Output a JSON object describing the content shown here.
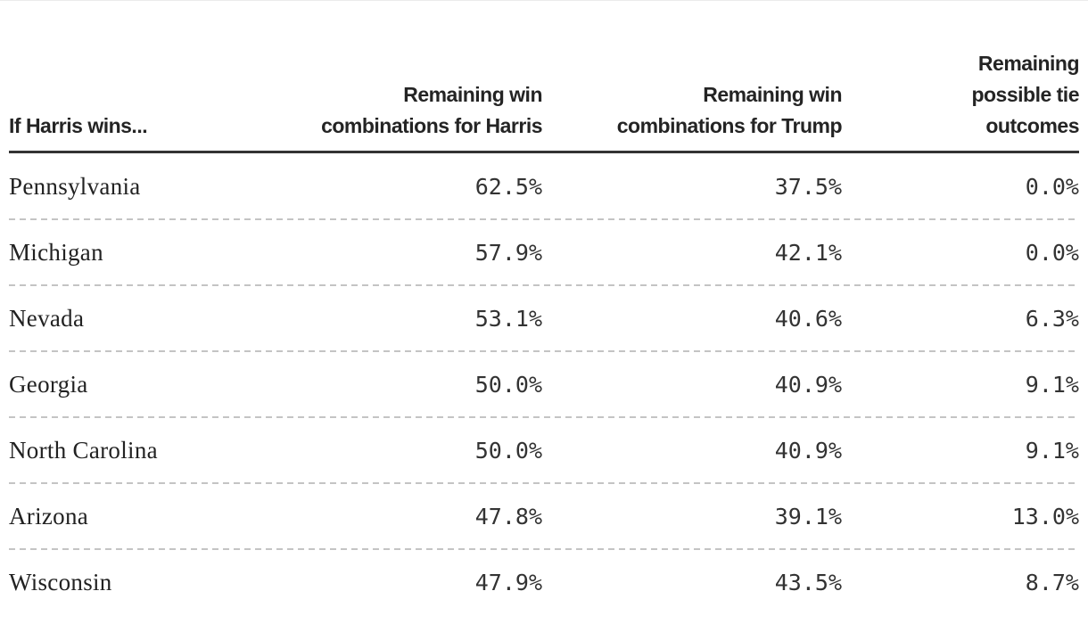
{
  "table": {
    "columns": [
      {
        "label": "If Harris wins...",
        "align": "left",
        "lines": [
          "If Harris wins..."
        ]
      },
      {
        "label": "Remaining win combinations for Harris",
        "align": "right",
        "lines": [
          "Remaining win",
          "combinations for Harris"
        ]
      },
      {
        "label": "Remaining win combinations for Trump",
        "align": "right",
        "lines": [
          "Remaining win",
          "combinations for Trump"
        ]
      },
      {
        "label": "Remaining possible tie outcomes",
        "align": "right",
        "lines": [
          "Remaining",
          "possible tie",
          "outcomes"
        ]
      }
    ],
    "rows": [
      {
        "state": "Pennsylvania",
        "harris": "62.5%",
        "trump": "37.5%",
        "tie": "0.0%"
      },
      {
        "state": "Michigan",
        "harris": "57.9%",
        "trump": "42.1%",
        "tie": "0.0%"
      },
      {
        "state": "Nevada",
        "harris": "53.1%",
        "trump": "40.6%",
        "tie": "6.3%"
      },
      {
        "state": "Georgia",
        "harris": "50.0%",
        "trump": "40.9%",
        "tie": "9.1%"
      },
      {
        "state": "North Carolina",
        "harris": "50.0%",
        "trump": "40.9%",
        "tie": "9.1%"
      },
      {
        "state": "Arizona",
        "harris": "47.8%",
        "trump": "39.1%",
        "tie": "13.0%"
      },
      {
        "state": "Wisconsin",
        "harris": "47.9%",
        "trump": "43.5%",
        "tie": "8.7%"
      }
    ],
    "colors": {
      "header_text": "#242424",
      "body_text": "#222222",
      "number_text": "#333333",
      "header_rule": "#333333",
      "row_separator": "#c4c4c4",
      "background": "#ffffff"
    }
  },
  "chart_data": {
    "type": "table",
    "title": "If Harris wins...",
    "columns": [
      "If Harris wins...",
      "Remaining win combinations for Harris",
      "Remaining win combinations for Trump",
      "Remaining possible tie outcomes"
    ],
    "categories": [
      "Pennsylvania",
      "Michigan",
      "Nevada",
      "Georgia",
      "North Carolina",
      "Arizona",
      "Wisconsin"
    ],
    "series": [
      {
        "name": "Remaining win combinations for Harris",
        "values": [
          62.5,
          57.9,
          53.1,
          50.0,
          50.0,
          47.8,
          47.9
        ]
      },
      {
        "name": "Remaining win combinations for Trump",
        "values": [
          37.5,
          42.1,
          40.6,
          40.9,
          40.9,
          39.1,
          43.5
        ]
      },
      {
        "name": "Remaining possible tie outcomes",
        "values": [
          0.0,
          0.0,
          6.3,
          9.1,
          9.1,
          13.0,
          8.7
        ]
      }
    ],
    "unit": "%",
    "layout": "header-rule-solid, row-separators-dashed, numeric-columns-right-aligned"
  }
}
